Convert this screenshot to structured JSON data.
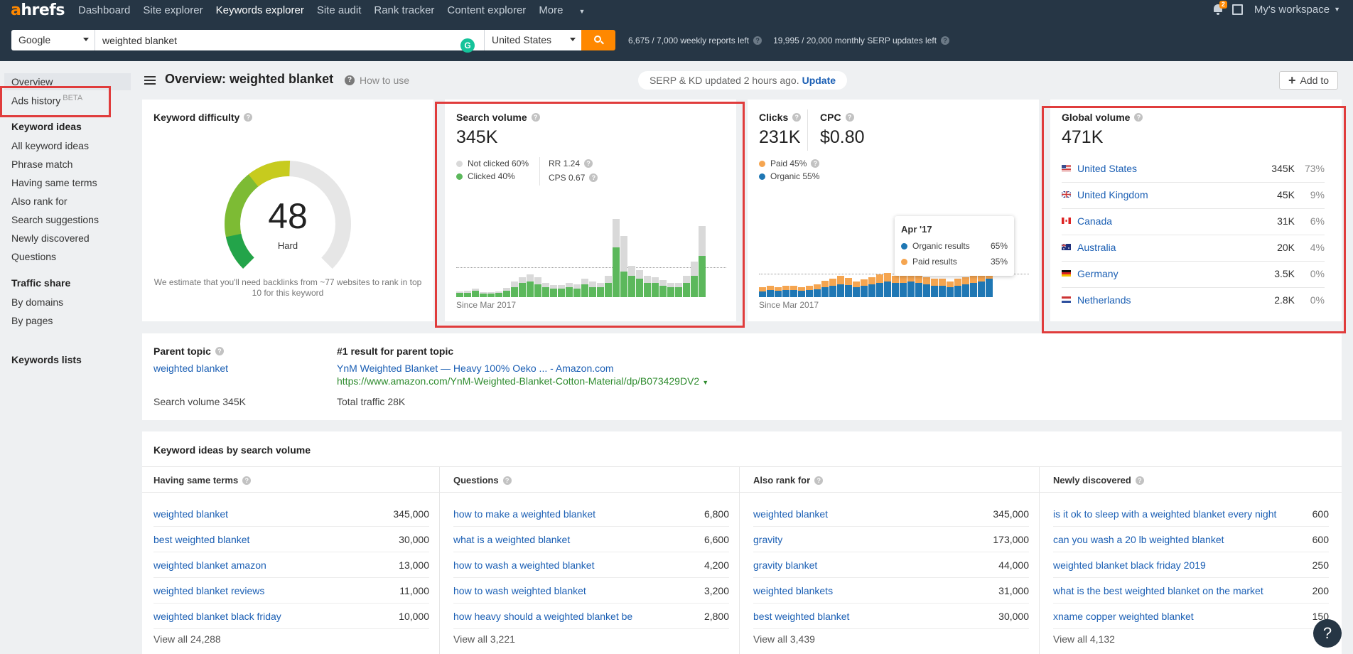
{
  "nav": {
    "logo_a": "a",
    "logo_rest": "hrefs",
    "links": [
      "Dashboard",
      "Site explorer",
      "Keywords explorer",
      "Site audit",
      "Rank tracker",
      "Content explorer",
      "More"
    ],
    "notification_count": "2",
    "workspace": "My's workspace"
  },
  "search": {
    "engine": "Google",
    "keyword": "weighted blanket",
    "country": "United States",
    "grammarly": "G",
    "weekly_reports": "6,675 / 7,000 weekly reports left",
    "monthly_updates": "19,995 / 20,000 monthly SERP updates left"
  },
  "sidebar": {
    "overview": "Overview",
    "ads_history": "Ads history",
    "beta": "BETA",
    "keyword_ideas_head": "Keyword ideas",
    "keyword_ideas": [
      "All keyword ideas",
      "Phrase match",
      "Having same terms",
      "Also rank for",
      "Search suggestions",
      "Newly discovered",
      "Questions"
    ],
    "traffic_share_head": "Traffic share",
    "traffic_share": [
      "By domains",
      "By pages"
    ],
    "keywords_lists": "Keywords lists"
  },
  "header": {
    "title": "Overview: weighted blanket",
    "how_to_use": "How to use",
    "serp_status": "SERP & KD updated 2 hours ago.",
    "update_link": "Update",
    "add_to": "Add to"
  },
  "kd": {
    "title": "Keyword difficulty",
    "value": "48",
    "label": "Hard",
    "score": 48,
    "note": "We estimate that you'll need backlinks from ~77 websites to rank in top 10 for this keyword"
  },
  "search_volume": {
    "title": "Search volume",
    "value": "345K",
    "not_clicked": "Not clicked 60%",
    "clicked": "Clicked 40%",
    "rr": "RR 1.24",
    "cps": "CPS 0.67",
    "since": "Since Mar 2017",
    "colors": {
      "clicked": "#5cb85c",
      "not_clicked": "#d9d9d9"
    }
  },
  "clicks": {
    "title": "Clicks",
    "value": "231K",
    "cpc_title": "CPC",
    "cpc_value": "$0.80",
    "paid": "Paid 45%",
    "organic": "Organic 55%",
    "since": "Since Mar 2017",
    "tooltip": {
      "date": "Apr '17",
      "organic_label": "Organic results",
      "organic_pct": "65%",
      "paid_label": "Paid results",
      "paid_pct": "35%"
    },
    "colors": {
      "organic": "#1f77b4",
      "paid": "#f5a550"
    }
  },
  "global_volume": {
    "title": "Global volume",
    "value": "471K",
    "countries": [
      {
        "name": "United States",
        "vol": "345K",
        "pct": "73%"
      },
      {
        "name": "United Kingdom",
        "vol": "45K",
        "pct": "9%"
      },
      {
        "name": "Canada",
        "vol": "31K",
        "pct": "6%"
      },
      {
        "name": "Australia",
        "vol": "20K",
        "pct": "4%"
      },
      {
        "name": "Germany",
        "vol": "3.5K",
        "pct": "0%"
      },
      {
        "name": "Netherlands",
        "vol": "2.8K",
        "pct": "0%"
      }
    ]
  },
  "parent": {
    "title": "Parent topic",
    "topic": "weighted blanket",
    "volume": "Search volume 345K",
    "result_title": "#1 result for parent topic",
    "result_link": "YnM Weighted Blanket — Heavy 100% Oeko ... - Amazon.com",
    "result_url": "https://www.amazon.com/YnM-Weighted-Blanket-Cotton-Material/dp/B073429DV2",
    "traffic": "Total traffic 28K"
  },
  "ideas": {
    "title": "Keyword ideas by search volume",
    "columns": [
      {
        "head": "Having same terms",
        "rows": [
          [
            "weighted blanket",
            "345,000"
          ],
          [
            "best weighted blanket",
            "30,000"
          ],
          [
            "weighted blanket amazon",
            "13,000"
          ],
          [
            "weighted blanket reviews",
            "11,000"
          ],
          [
            "weighted blanket black friday",
            "10,000"
          ]
        ],
        "view_all": "View all 24,288"
      },
      {
        "head": "Questions",
        "rows": [
          [
            "how to make a weighted blanket",
            "6,800"
          ],
          [
            "what is a weighted blanket",
            "6,600"
          ],
          [
            "how to wash a weighted blanket",
            "4,200"
          ],
          [
            "how to wash weighted blanket",
            "3,200"
          ],
          [
            "how heavy should a weighted blanket be",
            "2,800"
          ]
        ],
        "view_all": "View all 3,221"
      },
      {
        "head": "Also rank for",
        "rows": [
          [
            "weighted blanket",
            "345,000"
          ],
          [
            "gravity",
            "173,000"
          ],
          [
            "gravity blanket",
            "44,000"
          ],
          [
            "weighted blankets",
            "31,000"
          ],
          [
            "best weighted blanket",
            "30,000"
          ]
        ],
        "view_all": "View all 3,439"
      },
      {
        "head": "Newly discovered",
        "rows": [
          [
            "is it ok to sleep with a weighted blanket every night",
            "600"
          ],
          [
            "can you wash a 20 lb weighted blanket",
            "600"
          ],
          [
            "weighted blanket black friday 2019",
            "250"
          ],
          [
            "what is the best weighted blanket on the market",
            "200"
          ],
          [
            "xname copper weighted blanket",
            "150"
          ]
        ],
        "view_all": "View all 4,132"
      }
    ]
  },
  "help": "?",
  "sv_bars": [
    [
      6,
      2
    ],
    [
      6,
      3
    ],
    [
      9,
      3
    ],
    [
      5,
      2
    ],
    [
      5,
      2
    ],
    [
      6,
      2
    ],
    [
      9,
      4
    ],
    [
      14,
      8
    ],
    [
      20,
      8
    ],
    [
      22,
      10
    ],
    [
      18,
      10
    ],
    [
      14,
      6
    ],
    [
      12,
      5
    ],
    [
      12,
      5
    ],
    [
      14,
      6
    ],
    [
      12,
      6
    ],
    [
      18,
      8
    ],
    [
      14,
      8
    ],
    [
      14,
      6
    ],
    [
      20,
      10
    ],
    [
      70,
      40
    ],
    [
      36,
      50
    ],
    [
      30,
      14
    ],
    [
      26,
      12
    ],
    [
      20,
      10
    ],
    [
      20,
      8
    ],
    [
      16,
      8
    ],
    [
      14,
      6
    ],
    [
      14,
      6
    ],
    [
      20,
      10
    ],
    [
      30,
      20
    ],
    [
      58,
      42
    ]
  ],
  "clicks_bars": [
    [
      8,
      6
    ],
    [
      10,
      6
    ],
    [
      9,
      5
    ],
    [
      10,
      6
    ],
    [
      10,
      6
    ],
    [
      9,
      5
    ],
    [
      10,
      6
    ],
    [
      11,
      7
    ],
    [
      14,
      9
    ],
    [
      16,
      10
    ],
    [
      18,
      12
    ],
    [
      17,
      10
    ],
    [
      14,
      8
    ],
    [
      16,
      9
    ],
    [
      18,
      10
    ],
    [
      20,
      12
    ],
    [
      22,
      12
    ],
    [
      20,
      10
    ],
    [
      20,
      12
    ],
    [
      22,
      12
    ],
    [
      20,
      10
    ],
    [
      18,
      10
    ],
    [
      16,
      10
    ],
    [
      16,
      10
    ],
    [
      14,
      8
    ],
    [
      16,
      10
    ],
    [
      18,
      10
    ],
    [
      20,
      12
    ],
    [
      22,
      14
    ],
    [
      26,
      32
    ]
  ]
}
